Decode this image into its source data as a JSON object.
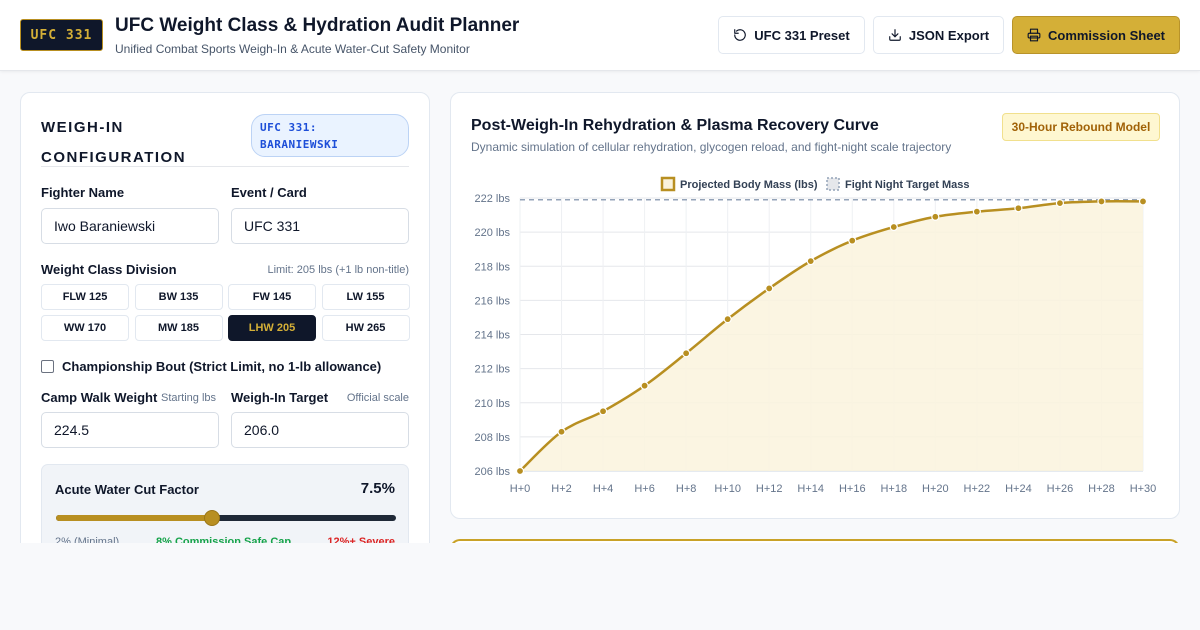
{
  "header": {
    "logo": "UFC 331",
    "title": "UFC Weight Class & Hydration Audit Planner",
    "subtitle": "Unified Combat Sports Weigh-In & Acute Water-Cut Safety Monitor",
    "buttons": {
      "preset": {
        "label": "UFC 331 Preset",
        "icon": "refresh-icon"
      },
      "json": {
        "label": "JSON Export",
        "icon": "download-icon"
      },
      "commission": {
        "label": "Commission Sheet",
        "icon": "printer-icon"
      }
    }
  },
  "config": {
    "title": "WEIGH-IN CONFIGURATION",
    "badge": "UFC 331: BARANIEWSKI",
    "fighter_name": {
      "label": "Fighter Name",
      "value": "Iwo Baraniewski"
    },
    "event_card": {
      "label": "Event / Card",
      "value": "UFC 331"
    },
    "weight_class": {
      "label": "Weight Class Division",
      "limit": "Limit: 205 lbs (+1 lb non-title)",
      "options": [
        "FLW 125",
        "BW 135",
        "FW 145",
        "LW 155",
        "WW 170",
        "MW 185",
        "LHW 205",
        "HW 265"
      ],
      "selected": "LHW 205"
    },
    "championship": {
      "label": "Championship Bout (Strict Limit, no 1-lb allowance)",
      "checked": false
    },
    "camp_walk": {
      "label": "Camp Walk Weight",
      "hint": "Starting lbs",
      "value": "224.5"
    },
    "weigh_in_target": {
      "label": "Weigh-In Target",
      "hint": "Official scale",
      "value": "206.0"
    },
    "water_cut": {
      "label": "Acute Water Cut Factor",
      "value": "7.5%",
      "min": 2,
      "max": 14,
      "current": 7.5,
      "tick_min": "2% (Minimal)",
      "tick_safe": "8% Commission Safe Cap",
      "tick_severe": "12%+ Severe"
    }
  },
  "chart_panel": {
    "title": "Post-Weigh-In Rehydration & Plasma Recovery Curve",
    "subtitle": "Dynamic simulation of cellular rehydration, glycogen reload, and fight-night scale trajectory",
    "badge": "30-Hour Rebound Model"
  },
  "chart_data": {
    "type": "line",
    "title": "",
    "xlabel": "",
    "ylabel": "",
    "x": [
      "H+0",
      "H+2",
      "H+4",
      "H+6",
      "H+8",
      "H+10",
      "H+12",
      "H+14",
      "H+16",
      "H+18",
      "H+20",
      "H+22",
      "H+24",
      "H+26",
      "H+28",
      "H+30"
    ],
    "y_ticks": [
      "206 lbs",
      "208 lbs",
      "210 lbs",
      "212 lbs",
      "214 lbs",
      "216 lbs",
      "218 lbs",
      "220 lbs",
      "222 lbs"
    ],
    "ylim": [
      206,
      222
    ],
    "grid": true,
    "legend_position": "top",
    "series": [
      {
        "name": "Projected Body Mass (lbs)",
        "color": "#b88f21",
        "values": [
          206.0,
          208.3,
          209.5,
          211.0,
          212.9,
          214.9,
          216.7,
          218.3,
          219.5,
          220.3,
          220.9,
          221.2,
          221.4,
          221.7,
          221.8,
          221.8
        ]
      },
      {
        "name": "Fight Night Target Mass",
        "color": "#94a3b8",
        "style": "dashed",
        "values": [
          221.9,
          221.9,
          221.9,
          221.9,
          221.9,
          221.9,
          221.9,
          221.9,
          221.9,
          221.9,
          221.9,
          221.9,
          221.9,
          221.9,
          221.9,
          221.9
        ]
      }
    ]
  }
}
